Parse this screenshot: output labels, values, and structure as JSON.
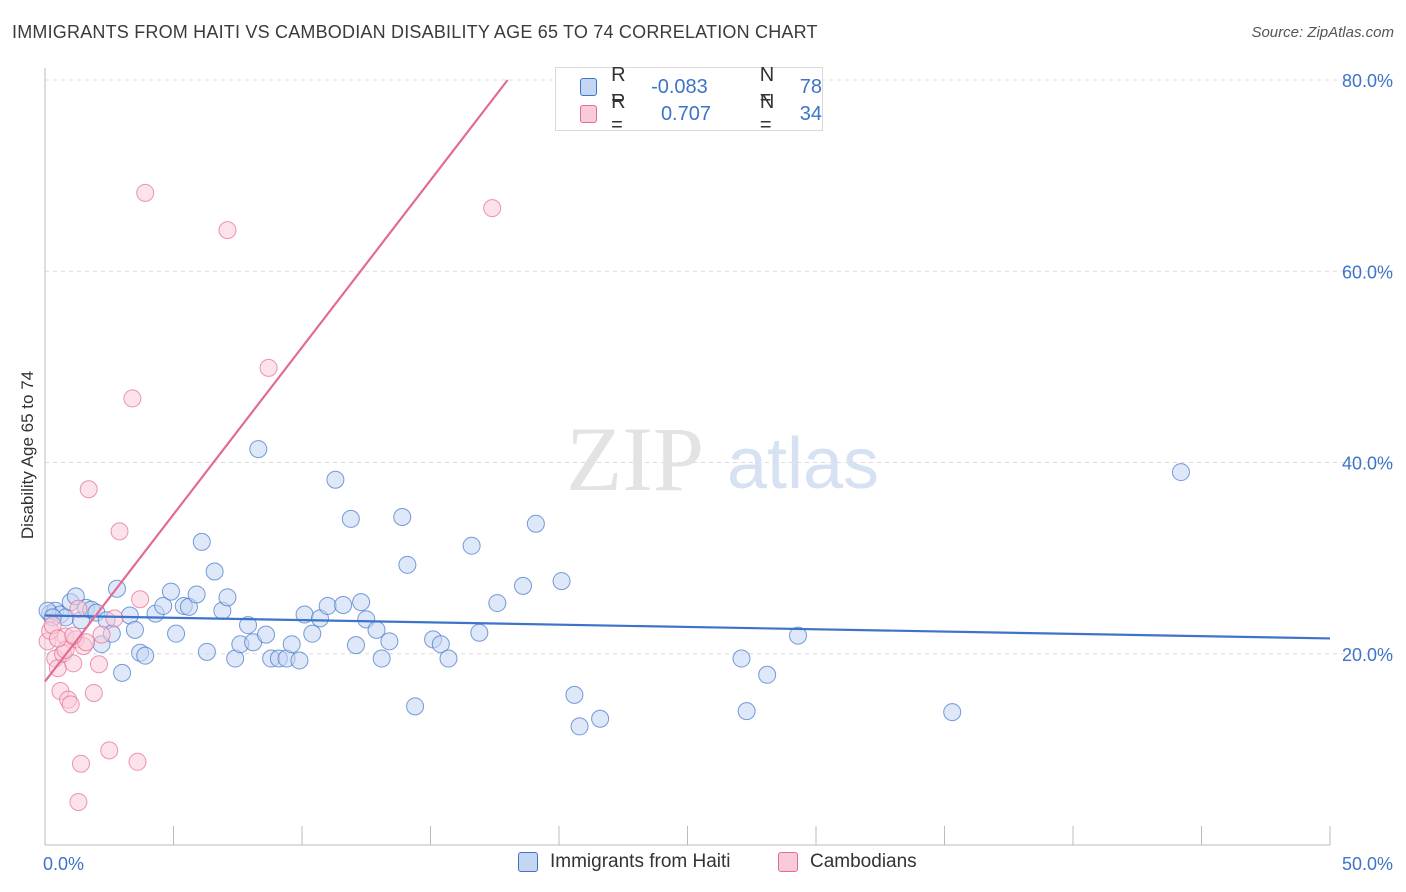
{
  "title": "IMMIGRANTS FROM HAITI VS CAMBODIAN DISABILITY AGE 65 TO 74 CORRELATION CHART",
  "source": "Source: ZipAtlas.com",
  "watermark": {
    "zip": "ZIP",
    "atlas": "atlas"
  },
  "legend_top": [
    {
      "r_label": "R =",
      "r_value": "-0.083",
      "n_label": "N =",
      "n_value": "78"
    },
    {
      "r_label": "R =",
      "r_value": "0.707",
      "n_label": "N =",
      "n_value": "34"
    }
  ],
  "colors": {
    "blue": "#3d74c9",
    "blue_fill": "#c5d6f3",
    "pink": "#e26c92",
    "pink_fill": "#f9cbd8",
    "grid": "#dcdcdc"
  },
  "chart_data": {
    "type": "scatter",
    "title": "IMMIGRANTS FROM HAITI VS CAMBODIAN DISABILITY AGE 65 TO 74 CORRELATION CHART",
    "xlabel": "",
    "ylabel": "Disability Age 65 to 74",
    "xlim": [
      0,
      50
    ],
    "ylim": [
      0,
      80
    ],
    "x_ticks_labeled": [
      "0.0%",
      "50.0%"
    ],
    "y_ticks": [
      "20.0%",
      "40.0%",
      "60.0%",
      "80.0%"
    ],
    "grid": true,
    "legend": "bottom-center",
    "series": [
      {
        "name": "Immigrants from Haiti",
        "color": "#3d74c9",
        "trend": {
          "x": [
            0,
            50
          ],
          "y": [
            24.0,
            21.6
          ]
        },
        "points": [
          [
            0.2,
            24.2
          ],
          [
            0.4,
            24.5
          ],
          [
            0.6,
            24.1
          ],
          [
            0.8,
            23.8
          ],
          [
            1.0,
            25.4
          ],
          [
            1.2,
            26.0
          ],
          [
            1.4,
            23.5
          ],
          [
            1.6,
            24.8
          ],
          [
            1.8,
            24.6
          ],
          [
            2.0,
            24.3
          ],
          [
            2.2,
            21.0
          ],
          [
            2.4,
            23.5
          ],
          [
            2.6,
            22.1
          ],
          [
            2.8,
            26.8
          ],
          [
            3.0,
            18.0
          ],
          [
            3.3,
            24.0
          ],
          [
            3.5,
            22.5
          ],
          [
            3.7,
            20.1
          ],
          [
            3.9,
            19.8
          ],
          [
            4.3,
            24.2
          ],
          [
            4.6,
            25.0
          ],
          [
            4.9,
            26.5
          ],
          [
            5.1,
            22.1
          ],
          [
            5.4,
            25.0
          ],
          [
            5.6,
            24.9
          ],
          [
            5.9,
            26.2
          ],
          [
            6.1,
            31.7
          ],
          [
            6.3,
            20.2
          ],
          [
            6.6,
            28.6
          ],
          [
            6.9,
            24.5
          ],
          [
            7.1,
            25.9
          ],
          [
            7.4,
            19.5
          ],
          [
            7.6,
            21.0
          ],
          [
            7.9,
            23.0
          ],
          [
            8.1,
            21.2
          ],
          [
            8.3,
            41.4
          ],
          [
            8.6,
            22.0
          ],
          [
            8.8,
            19.5
          ],
          [
            9.1,
            19.5
          ],
          [
            9.4,
            19.5
          ],
          [
            9.6,
            21.0
          ],
          [
            9.9,
            19.3
          ],
          [
            10.1,
            24.1
          ],
          [
            10.4,
            22.1
          ],
          [
            10.7,
            23.7
          ],
          [
            11.0,
            25.0
          ],
          [
            11.3,
            38.2
          ],
          [
            11.6,
            25.1
          ],
          [
            11.9,
            34.1
          ],
          [
            12.1,
            20.9
          ],
          [
            12.3,
            25.4
          ],
          [
            12.5,
            23.6
          ],
          [
            12.9,
            22.5
          ],
          [
            13.1,
            19.5
          ],
          [
            13.4,
            21.3
          ],
          [
            13.9,
            34.3
          ],
          [
            14.1,
            29.3
          ],
          [
            14.4,
            14.5
          ],
          [
            15.1,
            21.5
          ],
          [
            15.4,
            21.0
          ],
          [
            15.7,
            19.5
          ],
          [
            16.6,
            31.3
          ],
          [
            16.9,
            22.2
          ],
          [
            17.6,
            25.3
          ],
          [
            18.6,
            27.1
          ],
          [
            19.1,
            33.6
          ],
          [
            20.1,
            27.6
          ],
          [
            20.6,
            15.7
          ],
          [
            20.8,
            12.4
          ],
          [
            21.6,
            13.2
          ],
          [
            27.1,
            19.5
          ],
          [
            27.3,
            14.0
          ],
          [
            28.1,
            17.8
          ],
          [
            29.3,
            21.9
          ],
          [
            35.3,
            13.9
          ],
          [
            44.2,
            39.0
          ],
          [
            0.1,
            24.5
          ],
          [
            0.3,
            23.8
          ]
        ]
      },
      {
        "name": "Cambodians",
        "color": "#e26c92",
        "trend": {
          "x": [
            0,
            18.0
          ],
          "y": [
            17.1,
            80.0
          ]
        },
        "points": [
          [
            0.1,
            21.3
          ],
          [
            0.2,
            22.4
          ],
          [
            0.3,
            23.0
          ],
          [
            0.4,
            19.5
          ],
          [
            0.5,
            18.5
          ],
          [
            0.6,
            16.1
          ],
          [
            0.7,
            20.0
          ],
          [
            0.8,
            21.8
          ],
          [
            0.9,
            15.2
          ],
          [
            1.0,
            14.7
          ],
          [
            1.1,
            19.0
          ],
          [
            1.2,
            21.5
          ],
          [
            1.3,
            24.7
          ],
          [
            1.4,
            8.5
          ],
          [
            1.5,
            20.8
          ],
          [
            1.7,
            37.2
          ],
          [
            1.9,
            15.9
          ],
          [
            2.1,
            18.9
          ],
          [
            2.2,
            22.0
          ],
          [
            2.5,
            9.9
          ],
          [
            2.9,
            32.8
          ],
          [
            3.4,
            46.7
          ],
          [
            3.6,
            8.7
          ],
          [
            3.7,
            25.7
          ],
          [
            3.9,
            68.2
          ],
          [
            7.1,
            64.3
          ],
          [
            8.7,
            49.9
          ],
          [
            17.4,
            66.6
          ],
          [
            1.3,
            4.5
          ],
          [
            0.8,
            20.4
          ],
          [
            2.7,
            23.7
          ],
          [
            1.6,
            21.2
          ],
          [
            0.5,
            21.6
          ],
          [
            1.1,
            21.9
          ]
        ]
      }
    ]
  },
  "bottom_legend": [
    "Immigrants from Haiti",
    "Cambodians"
  ]
}
